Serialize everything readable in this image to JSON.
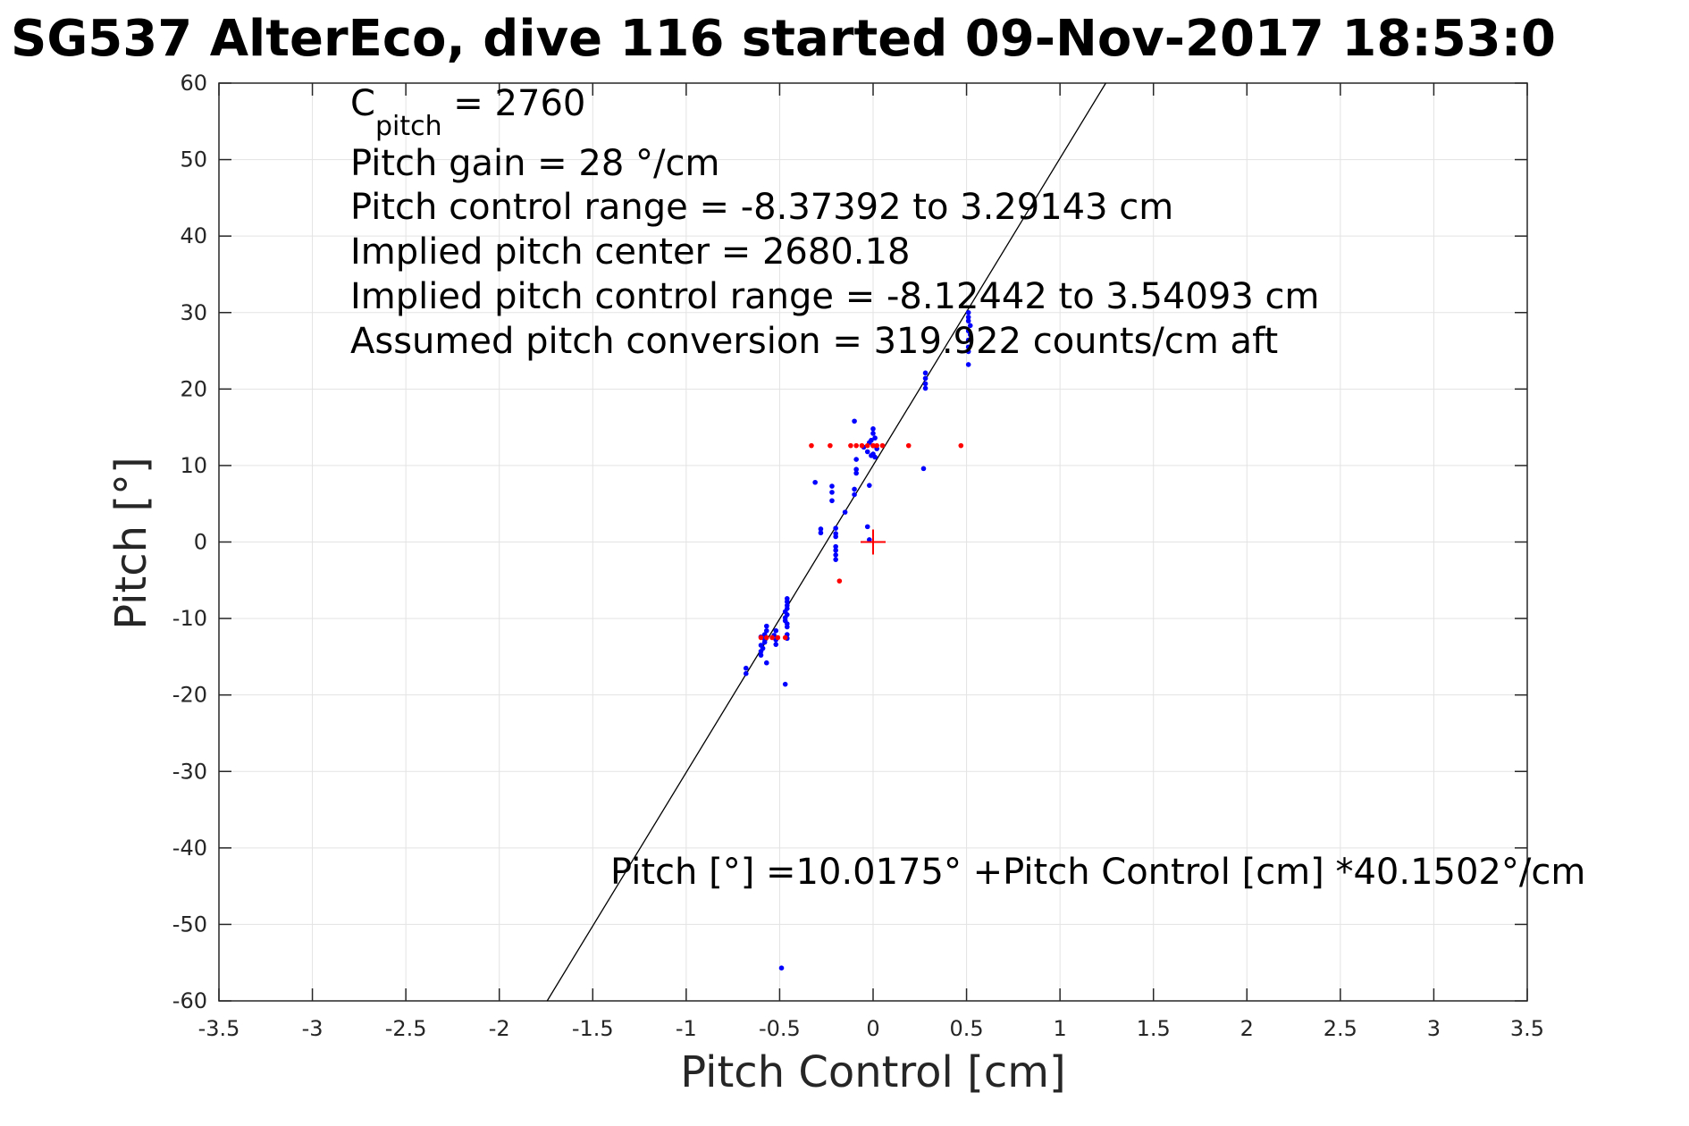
{
  "chart_data": {
    "type": "scatter",
    "title": "SG537 AlterEco, dive 116 started 09-Nov-2017 18:53:0",
    "xlabel": "Pitch Control [cm]",
    "ylabel": "Pitch [°]",
    "xlim": [
      -3.5,
      3.5
    ],
    "ylim": [
      -60,
      60
    ],
    "grid": true,
    "xticks": [
      -3.5,
      -3,
      -2.5,
      -2,
      -1.5,
      -1,
      -0.5,
      0,
      0.5,
      1,
      1.5,
      2,
      2.5,
      3,
      3.5
    ],
    "xtick_labels": [
      "-3.5",
      "-3",
      "-2.5",
      "-2",
      "-1.5",
      "-1",
      "-0.5",
      "0",
      "0.5",
      "1",
      "1.5",
      "2",
      "2.5",
      "3",
      "3.5"
    ],
    "yticks": [
      -60,
      -50,
      -40,
      -30,
      -20,
      -10,
      0,
      10,
      20,
      30,
      40,
      50,
      60
    ],
    "ytick_labels": [
      "-60",
      "-50",
      "-40",
      "-30",
      "-20",
      "-10",
      "0",
      "10",
      "20",
      "30",
      "40",
      "50",
      "60"
    ],
    "annotations": {
      "c_pitch_main": "C",
      "c_pitch_sub": "pitch",
      "c_pitch_value": " = 2760",
      "line2": "Pitch gain = 28 °/cm",
      "line3": "Pitch control range = -8.37392 to 3.29143 cm",
      "line4": "Implied pitch center = 2680.18",
      "line5": "Implied pitch control range = -8.12442 to 3.54093 cm",
      "line6": "Assumed pitch conversion = 319.922 counts/cm aft",
      "fit_equation": "Pitch [°] =10.0175° +Pitch Control [cm] *40.1502°/cm"
    },
    "fit_line": {
      "intercept": 10.0175,
      "slope": 40.1502,
      "color": "#000000"
    },
    "center_marker": {
      "x": 0,
      "y": 0,
      "color": "#ff0000"
    },
    "series": [
      {
        "color": "#0000ff",
        "points": [
          [
            0.51,
            30.0
          ],
          [
            0.51,
            29.4
          ],
          [
            0.51,
            28.9
          ],
          [
            0.52,
            28.3
          ],
          [
            0.51,
            27.6
          ],
          [
            0.52,
            27.1
          ],
          [
            0.51,
            26.4
          ],
          [
            0.51,
            25.5
          ],
          [
            0.51,
            24.9
          ],
          [
            0.51,
            23.2
          ],
          [
            0.28,
            22.1
          ],
          [
            0.28,
            21.4
          ],
          [
            0.28,
            20.7
          ],
          [
            0.28,
            20.1
          ],
          [
            0.27,
            9.6
          ],
          [
            -0.1,
            15.8
          ],
          [
            0.0,
            14.8
          ],
          [
            0.0,
            14.2
          ],
          [
            0.01,
            13.6
          ],
          [
            -0.01,
            13.3
          ],
          [
            -0.02,
            13.0
          ],
          [
            0.0,
            12.6
          ],
          [
            -0.05,
            12.4
          ],
          [
            0.02,
            12.2
          ],
          [
            -0.03,
            11.8
          ],
          [
            0.0,
            11.5
          ],
          [
            -0.01,
            11.3
          ],
          [
            0.01,
            11.1
          ],
          [
            -0.09,
            10.8
          ],
          [
            -0.09,
            9.5
          ],
          [
            -0.09,
            9.0
          ],
          [
            -0.31,
            7.8
          ],
          [
            -0.02,
            7.4
          ],
          [
            -0.22,
            7.3
          ],
          [
            -0.22,
            6.5
          ],
          [
            -0.1,
            6.9
          ],
          [
            -0.1,
            6.2
          ],
          [
            -0.22,
            5.4
          ],
          [
            -0.15,
            3.9
          ],
          [
            -0.28,
            1.7
          ],
          [
            -0.28,
            1.2
          ],
          [
            -0.03,
            2.0
          ],
          [
            -0.2,
            1.8
          ],
          [
            -0.2,
            1.1
          ],
          [
            -0.2,
            0.7
          ],
          [
            -0.02,
            0.3
          ],
          [
            -0.2,
            -0.6
          ],
          [
            -0.2,
            -1.1
          ],
          [
            -0.2,
            -1.7
          ],
          [
            -0.2,
            -2.3
          ],
          [
            -0.46,
            -7.4
          ],
          [
            -0.46,
            -7.8
          ],
          [
            -0.46,
            -8.3
          ],
          [
            -0.46,
            -8.7
          ],
          [
            -0.47,
            -9.1
          ],
          [
            -0.46,
            -9.5
          ],
          [
            -0.47,
            -9.9
          ],
          [
            -0.47,
            -10.3
          ],
          [
            -0.46,
            -10.7
          ],
          [
            -0.46,
            -11.1
          ],
          [
            -0.57,
            -11.0
          ],
          [
            -0.57,
            -11.6
          ],
          [
            -0.58,
            -12.1
          ],
          [
            -0.6,
            -12.4
          ],
          [
            -0.58,
            -12.7
          ],
          [
            -0.58,
            -13.1
          ],
          [
            -0.6,
            -13.5
          ],
          [
            -0.59,
            -13.9
          ],
          [
            -0.6,
            -14.3
          ],
          [
            -0.6,
            -14.8
          ],
          [
            -0.52,
            -11.6
          ],
          [
            -0.53,
            -12.2
          ],
          [
            -0.52,
            -12.8
          ],
          [
            -0.52,
            -13.4
          ],
          [
            -0.46,
            -12.1
          ],
          [
            -0.46,
            -12.6
          ],
          [
            -0.57,
            -15.8
          ],
          [
            -0.68,
            -16.5
          ],
          [
            -0.68,
            -17.2
          ],
          [
            -0.47,
            -18.6
          ],
          [
            -0.49,
            -55.7
          ]
        ]
      },
      {
        "color": "#ff0000",
        "points": [
          [
            -0.33,
            12.6
          ],
          [
            -0.23,
            12.6
          ],
          [
            -0.12,
            12.6
          ],
          [
            -0.09,
            12.6
          ],
          [
            -0.06,
            12.6
          ],
          [
            -0.03,
            12.6
          ],
          [
            0.0,
            12.6
          ],
          [
            0.02,
            12.6
          ],
          [
            0.05,
            12.6
          ],
          [
            0.19,
            12.6
          ],
          [
            0.47,
            12.6
          ],
          [
            -0.18,
            -5.1
          ],
          [
            -0.6,
            -12.5
          ],
          [
            -0.57,
            -12.5
          ],
          [
            -0.54,
            -12.5
          ],
          [
            -0.51,
            -12.5
          ],
          [
            -0.47,
            -12.5
          ]
        ]
      }
    ]
  }
}
